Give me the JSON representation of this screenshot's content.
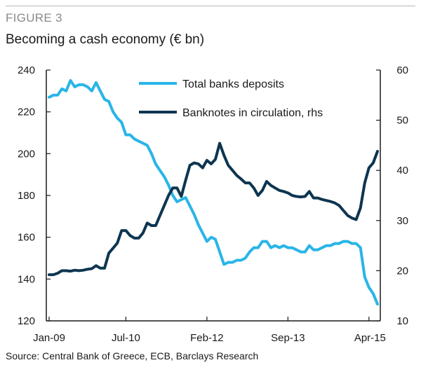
{
  "figure_label": "FIGURE 3",
  "source": "Source: Central Bank of Greece, ECB, Barclays Research",
  "colors": {
    "deposits": "#29b5e8",
    "banknotes": "#0d3550",
    "axis": "#1a1a1a",
    "rule": "#b9b9b9"
  },
  "chart_data": {
    "type": "line",
    "title": "Becoming a cash economy (€ bn)",
    "x_tick_labels": [
      "Jan-09",
      "Jul-10",
      "Feb-12",
      "Sep-13",
      "Apr-15"
    ],
    "x_tick_months": [
      0,
      18,
      37,
      56,
      75
    ],
    "y_left": {
      "lim": [
        120,
        240
      ],
      "ticks": [
        120,
        140,
        160,
        180,
        200,
        220,
        240
      ]
    },
    "y_right": {
      "lim": [
        10,
        60
      ],
      "ticks": [
        10,
        20,
        30,
        40,
        50,
        60
      ]
    },
    "legend_location": "top-center",
    "grid": false,
    "series": [
      {
        "name": "Total banks deposits",
        "axis": "left",
        "points": [
          [
            0,
            227
          ],
          [
            1,
            228
          ],
          [
            2,
            228
          ],
          [
            3,
            231
          ],
          [
            4,
            230
          ],
          [
            5,
            235
          ],
          [
            6,
            232
          ],
          [
            7,
            233
          ],
          [
            8,
            233
          ],
          [
            9,
            232
          ],
          [
            10,
            230
          ],
          [
            11,
            234
          ],
          [
            12,
            230
          ],
          [
            13,
            226
          ],
          [
            14,
            225
          ],
          [
            15,
            220
          ],
          [
            16,
            217
          ],
          [
            17,
            215
          ],
          [
            18,
            209
          ],
          [
            19,
            209
          ],
          [
            20,
            207
          ],
          [
            21,
            206
          ],
          [
            22,
            205
          ],
          [
            23,
            204
          ],
          [
            24,
            200
          ],
          [
            25,
            195
          ],
          [
            26,
            192
          ],
          [
            27,
            189
          ],
          [
            28,
            185
          ],
          [
            29,
            180
          ],
          [
            30,
            177
          ],
          [
            31,
            178
          ],
          [
            32,
            179
          ],
          [
            33,
            175
          ],
          [
            34,
            171
          ],
          [
            35,
            166
          ],
          [
            36,
            162
          ],
          [
            37,
            158
          ],
          [
            38,
            160
          ],
          [
            39,
            159
          ],
          [
            40,
            153
          ],
          [
            41,
            147
          ],
          [
            42,
            148
          ],
          [
            43,
            148
          ],
          [
            44,
            149
          ],
          [
            45,
            149
          ],
          [
            46,
            150
          ],
          [
            47,
            153
          ],
          [
            48,
            155
          ],
          [
            49,
            155
          ],
          [
            50,
            158
          ],
          [
            51,
            158
          ],
          [
            52,
            155
          ],
          [
            53,
            156
          ],
          [
            54,
            155
          ],
          [
            55,
            156
          ],
          [
            56,
            155
          ],
          [
            57,
            155
          ],
          [
            58,
            154
          ],
          [
            59,
            153
          ],
          [
            60,
            153
          ],
          [
            61,
            156
          ],
          [
            62,
            154
          ],
          [
            63,
            154
          ],
          [
            64,
            155
          ],
          [
            65,
            156
          ],
          [
            66,
            156
          ],
          [
            67,
            157
          ],
          [
            68,
            157
          ],
          [
            69,
            158
          ],
          [
            70,
            158
          ],
          [
            71,
            157
          ],
          [
            72,
            157
          ],
          [
            73,
            155
          ],
          [
            74,
            141
          ],
          [
            75,
            136
          ],
          [
            76,
            133
          ],
          [
            77,
            128
          ]
        ]
      },
      {
        "name": "Banknotes in circulation, rhs",
        "axis": "right",
        "points": [
          [
            0,
            19.2
          ],
          [
            1,
            19.2
          ],
          [
            2,
            19.5
          ],
          [
            3,
            20
          ],
          [
            4,
            20
          ],
          [
            5,
            19.9
          ],
          [
            6,
            20.1
          ],
          [
            7,
            20
          ],
          [
            8,
            20.1
          ],
          [
            9,
            20.3
          ],
          [
            10,
            20.4
          ],
          [
            11,
            21
          ],
          [
            12,
            20.5
          ],
          [
            13,
            20.5
          ],
          [
            14,
            23.5
          ],
          [
            15,
            24.5
          ],
          [
            16,
            25.5
          ],
          [
            17,
            28
          ],
          [
            18,
            28
          ],
          [
            19,
            27
          ],
          [
            20,
            26.5
          ],
          [
            21,
            26.5
          ],
          [
            22,
            27.5
          ],
          [
            23,
            29.5
          ],
          [
            24,
            29
          ],
          [
            25,
            29
          ],
          [
            26,
            31
          ],
          [
            27,
            33
          ],
          [
            28,
            35
          ],
          [
            29,
            36.5
          ],
          [
            30,
            36.5
          ],
          [
            31,
            34.8
          ],
          [
            32,
            38
          ],
          [
            33,
            41
          ],
          [
            34,
            41.5
          ],
          [
            35,
            41.3
          ],
          [
            36,
            40.5
          ],
          [
            37,
            42
          ],
          [
            38,
            41.3
          ],
          [
            39,
            42.2
          ],
          [
            40,
            45.4
          ],
          [
            41,
            43
          ],
          [
            42,
            41
          ],
          [
            43,
            40
          ],
          [
            44,
            39
          ],
          [
            45,
            38.3
          ],
          [
            46,
            37.5
          ],
          [
            47,
            37.5
          ],
          [
            48,
            36.5
          ],
          [
            49,
            35
          ],
          [
            50,
            36
          ],
          [
            51,
            37.8
          ],
          [
            52,
            37
          ],
          [
            53,
            36.5
          ],
          [
            54,
            36
          ],
          [
            55,
            35.8
          ],
          [
            56,
            35.5
          ],
          [
            57,
            35
          ],
          [
            58,
            34.8
          ],
          [
            59,
            34.7
          ],
          [
            60,
            34.8
          ],
          [
            61,
            35.8
          ],
          [
            62,
            34.5
          ],
          [
            63,
            34.5
          ],
          [
            64,
            34.2
          ],
          [
            65,
            34
          ],
          [
            66,
            33.8
          ],
          [
            67,
            33.5
          ],
          [
            68,
            33
          ],
          [
            69,
            32
          ],
          [
            70,
            31
          ],
          [
            71,
            30.5
          ],
          [
            72,
            30.2
          ],
          [
            73,
            32.5
          ],
          [
            74,
            37.5
          ],
          [
            75,
            40.5
          ],
          [
            76,
            41.5
          ],
          [
            77,
            43.8
          ]
        ]
      }
    ]
  }
}
